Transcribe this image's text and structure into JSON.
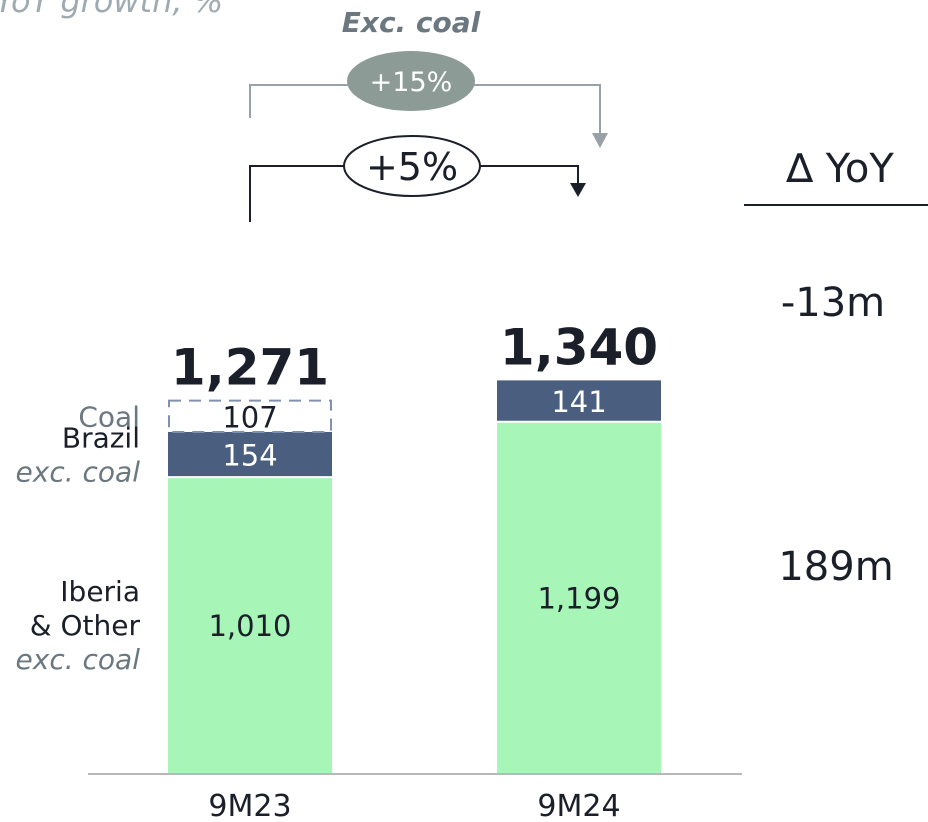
{
  "chart_data": {
    "type": "bar",
    "subtitle": "YoY growth, %",
    "categories": [
      "9M23",
      "9M24"
    ],
    "series": [
      {
        "name": "Iberia & Other exc. coal",
        "label_lines": [
          "Iberia",
          "& Other",
          "exc. coal"
        ],
        "values": [
          1010,
          1199
        ],
        "color": "#a8f5b8"
      },
      {
        "name": "Brazil exc. coal",
        "label_lines": [
          "Brazil",
          "exc. coal"
        ],
        "values": [
          154,
          141
        ],
        "color": "#4a5f80"
      },
      {
        "name": "Coal",
        "label_lines": [
          "Coal"
        ],
        "values": [
          107,
          0
        ],
        "color": "#ffffff",
        "border": "#8091b0"
      }
    ],
    "totals": [
      1271,
      1340
    ],
    "totals_text": [
      "1,271",
      "1,340"
    ],
    "growth": {
      "total": "+5%",
      "exc_coal": "+15%",
      "exc_coal_label": "Exc. coal"
    },
    "delta_yoy": {
      "header": "∆ YoY",
      "values": [
        "-13m",
        "189m"
      ]
    }
  }
}
